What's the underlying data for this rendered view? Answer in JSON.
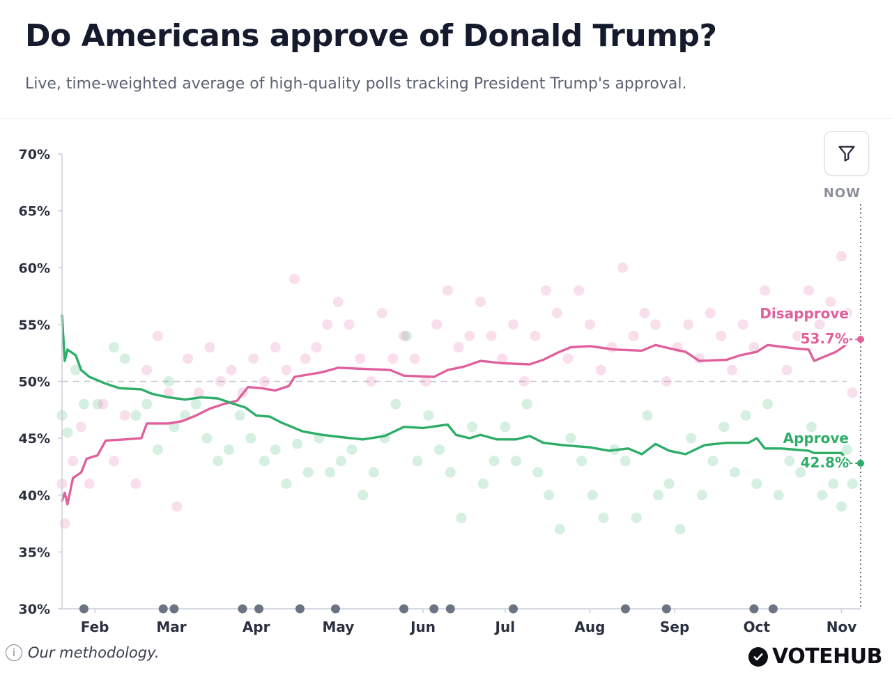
{
  "header": {
    "title": "Do Americans approve of Donald Trump?",
    "subtitle": "Live, time-weighted average of high-quality polls tracking President Trump's approval."
  },
  "controls": {
    "filter_icon": "filter-icon"
  },
  "footer": {
    "methodology_label": "Our methodology.",
    "info_icon": "info-icon",
    "logo_text": "VOTEHUB",
    "logo_icon": "check-circle-icon"
  },
  "colors": {
    "approve": "#2ead68",
    "disapprove": "#e0609c",
    "axis": "#c9ced8",
    "text": "#1b1f2e",
    "markers": "#6b7384"
  },
  "chart_data": {
    "type": "line",
    "ylim": [
      30,
      70
    ],
    "yticks": [
      30,
      35,
      40,
      45,
      50,
      55,
      60,
      65,
      70
    ],
    "ytick_labels": [
      "30%",
      "35%",
      "40%",
      "45%",
      "50%",
      "55%",
      "60%",
      "65%",
      "70%"
    ],
    "xlim": [
      "2025-01-20",
      "2025-11-08"
    ],
    "xticks": [
      {
        "label": "Feb",
        "date": "2025-02-01"
      },
      {
        "label": "Mar",
        "date": "2025-03-01"
      },
      {
        "label": "Apr",
        "date": "2025-04-01"
      },
      {
        "label": "May",
        "date": "2025-05-01"
      },
      {
        "label": "Jun",
        "date": "2025-06-01"
      },
      {
        "label": "Jul",
        "date": "2025-07-01"
      },
      {
        "label": "Aug",
        "date": "2025-08-01"
      },
      {
        "label": "Sep",
        "date": "2025-09-01"
      },
      {
        "label": "Oct",
        "date": "2025-10-01"
      },
      {
        "label": "Nov",
        "date": "2025-11-01"
      }
    ],
    "reference_line": 50,
    "now_label": "NOW",
    "now_date": "2025-11-08",
    "series": [
      {
        "name": "Disapprove",
        "key": "disapprove",
        "current_label": "53.7%",
        "current_value": 53.7,
        "points": [
          [
            "2025-01-20",
            39.5
          ],
          [
            "2025-01-21",
            40.2
          ],
          [
            "2025-01-22",
            39.2
          ],
          [
            "2025-01-24",
            41.5
          ],
          [
            "2025-01-27",
            42.0
          ],
          [
            "2025-01-29",
            43.2
          ],
          [
            "2025-02-02",
            43.5
          ],
          [
            "2025-02-05",
            44.8
          ],
          [
            "2025-02-12",
            44.9
          ],
          [
            "2025-02-18",
            45.0
          ],
          [
            "2025-02-20",
            46.3
          ],
          [
            "2025-02-28",
            46.3
          ],
          [
            "2025-03-05",
            46.5
          ],
          [
            "2025-03-10",
            47.0
          ],
          [
            "2025-03-15",
            47.6
          ],
          [
            "2025-03-20",
            48.0
          ],
          [
            "2025-03-25",
            48.3
          ],
          [
            "2025-03-29",
            49.5
          ],
          [
            "2025-04-03",
            49.4
          ],
          [
            "2025-04-08",
            49.2
          ],
          [
            "2025-04-13",
            49.6
          ],
          [
            "2025-04-15",
            50.4
          ],
          [
            "2025-04-25",
            50.8
          ],
          [
            "2025-05-01",
            51.2
          ],
          [
            "2025-05-10",
            51.1
          ],
          [
            "2025-05-20",
            51.0
          ],
          [
            "2025-05-25",
            50.5
          ],
          [
            "2025-06-05",
            50.4
          ],
          [
            "2025-06-10",
            51.0
          ],
          [
            "2025-06-16",
            51.3
          ],
          [
            "2025-06-22",
            51.8
          ],
          [
            "2025-06-30",
            51.6
          ],
          [
            "2025-07-10",
            51.5
          ],
          [
            "2025-07-15",
            51.9
          ],
          [
            "2025-07-20",
            52.5
          ],
          [
            "2025-07-25",
            53.0
          ],
          [
            "2025-08-01",
            53.1
          ],
          [
            "2025-08-10",
            52.8
          ],
          [
            "2025-08-20",
            52.7
          ],
          [
            "2025-08-25",
            53.2
          ],
          [
            "2025-09-01",
            52.8
          ],
          [
            "2025-09-05",
            52.6
          ],
          [
            "2025-09-10",
            51.8
          ],
          [
            "2025-09-20",
            51.9
          ],
          [
            "2025-09-25",
            52.3
          ],
          [
            "2025-10-01",
            52.6
          ],
          [
            "2025-10-05",
            53.2
          ],
          [
            "2025-10-15",
            52.9
          ],
          [
            "2025-10-20",
            52.8
          ],
          [
            "2025-10-22",
            51.8
          ],
          [
            "2025-10-26",
            52.2
          ],
          [
            "2025-10-30",
            52.6
          ],
          [
            "2025-11-02",
            53.1
          ],
          [
            "2025-11-04",
            53.7
          ]
        ]
      },
      {
        "name": "Approve",
        "key": "approve",
        "current_label": "42.8%",
        "current_value": 42.8,
        "points": [
          [
            "2025-01-20",
            55.8
          ],
          [
            "2025-01-21",
            51.8
          ],
          [
            "2025-01-22",
            52.8
          ],
          [
            "2025-01-25",
            52.3
          ],
          [
            "2025-01-27",
            51.0
          ],
          [
            "2025-01-30",
            50.4
          ],
          [
            "2025-02-05",
            49.8
          ],
          [
            "2025-02-10",
            49.4
          ],
          [
            "2025-02-18",
            49.3
          ],
          [
            "2025-02-22",
            48.9
          ],
          [
            "2025-02-28",
            48.6
          ],
          [
            "2025-03-06",
            48.4
          ],
          [
            "2025-03-12",
            48.6
          ],
          [
            "2025-03-18",
            48.5
          ],
          [
            "2025-03-24",
            48.0
          ],
          [
            "2025-03-28",
            47.7
          ],
          [
            "2025-04-01",
            47.0
          ],
          [
            "2025-04-06",
            46.9
          ],
          [
            "2025-04-10",
            46.4
          ],
          [
            "2025-04-18",
            45.6
          ],
          [
            "2025-04-25",
            45.3
          ],
          [
            "2025-05-02",
            45.1
          ],
          [
            "2025-05-10",
            44.9
          ],
          [
            "2025-05-18",
            45.2
          ],
          [
            "2025-05-25",
            46.0
          ],
          [
            "2025-06-01",
            45.9
          ],
          [
            "2025-06-10",
            46.2
          ],
          [
            "2025-06-13",
            45.3
          ],
          [
            "2025-06-18",
            45.0
          ],
          [
            "2025-06-22",
            45.3
          ],
          [
            "2025-06-28",
            44.9
          ],
          [
            "2025-07-05",
            44.9
          ],
          [
            "2025-07-10",
            45.2
          ],
          [
            "2025-07-15",
            44.6
          ],
          [
            "2025-07-22",
            44.4
          ],
          [
            "2025-08-01",
            44.2
          ],
          [
            "2025-08-08",
            43.9
          ],
          [
            "2025-08-15",
            44.1
          ],
          [
            "2025-08-20",
            43.6
          ],
          [
            "2025-08-25",
            44.5
          ],
          [
            "2025-08-30",
            43.9
          ],
          [
            "2025-09-05",
            43.6
          ],
          [
            "2025-09-12",
            44.4
          ],
          [
            "2025-09-20",
            44.6
          ],
          [
            "2025-09-28",
            44.6
          ],
          [
            "2025-10-01",
            45.0
          ],
          [
            "2025-10-04",
            44.1
          ],
          [
            "2025-10-10",
            44.1
          ],
          [
            "2025-10-15",
            44.0
          ],
          [
            "2025-10-20",
            43.9
          ],
          [
            "2025-10-22",
            43.7
          ],
          [
            "2025-11-01",
            43.7
          ],
          [
            "2025-11-04",
            42.8
          ]
        ]
      }
    ],
    "poll_dots": {
      "approve": [
        [
          "2025-01-20",
          47.0
        ],
        [
          "2025-01-22",
          45.5
        ],
        [
          "2025-01-25",
          51.0
        ],
        [
          "2025-01-28",
          48.0
        ],
        [
          "2025-02-02",
          48.0
        ],
        [
          "2025-02-08",
          53.0
        ],
        [
          "2025-02-12",
          52.0
        ],
        [
          "2025-02-16",
          47.0
        ],
        [
          "2025-02-20",
          48.0
        ],
        [
          "2025-02-24",
          44.0
        ],
        [
          "2025-02-28",
          50.0
        ],
        [
          "2025-03-02",
          46.0
        ],
        [
          "2025-03-06",
          47.0
        ],
        [
          "2025-03-10",
          48.0
        ],
        [
          "2025-03-14",
          45.0
        ],
        [
          "2025-03-18",
          43.0
        ],
        [
          "2025-03-22",
          44.0
        ],
        [
          "2025-03-26",
          47.0
        ],
        [
          "2025-03-30",
          45.0
        ],
        [
          "2025-04-04",
          43.0
        ],
        [
          "2025-04-08",
          44.0
        ],
        [
          "2025-04-12",
          41.0
        ],
        [
          "2025-04-16",
          44.5
        ],
        [
          "2025-04-20",
          42.0
        ],
        [
          "2025-04-24",
          45.0
        ],
        [
          "2025-04-28",
          42.0
        ],
        [
          "2025-05-02",
          43.0
        ],
        [
          "2025-05-06",
          44.0
        ],
        [
          "2025-05-10",
          40.0
        ],
        [
          "2025-05-14",
          42.0
        ],
        [
          "2025-05-18",
          45.0
        ],
        [
          "2025-05-22",
          48.0
        ],
        [
          "2025-05-26",
          54.0
        ],
        [
          "2025-05-30",
          43.0
        ],
        [
          "2025-06-03",
          47.0
        ],
        [
          "2025-06-07",
          44.0
        ],
        [
          "2025-06-11",
          42.0
        ],
        [
          "2025-06-15",
          38.0
        ],
        [
          "2025-06-19",
          46.0
        ],
        [
          "2025-06-23",
          41.0
        ],
        [
          "2025-06-27",
          43.0
        ],
        [
          "2025-07-01",
          46.0
        ],
        [
          "2025-07-05",
          43.0
        ],
        [
          "2025-07-09",
          48.0
        ],
        [
          "2025-07-13",
          42.0
        ],
        [
          "2025-07-17",
          40.0
        ],
        [
          "2025-07-21",
          37.0
        ],
        [
          "2025-07-25",
          45.0
        ],
        [
          "2025-07-29",
          43.0
        ],
        [
          "2025-08-02",
          40.0
        ],
        [
          "2025-08-06",
          38.0
        ],
        [
          "2025-08-10",
          44.0
        ],
        [
          "2025-08-14",
          43.0
        ],
        [
          "2025-08-18",
          38.0
        ],
        [
          "2025-08-22",
          47.0
        ],
        [
          "2025-08-26",
          40.0
        ],
        [
          "2025-08-30",
          41.0
        ],
        [
          "2025-09-03",
          37.0
        ],
        [
          "2025-09-07",
          45.0
        ],
        [
          "2025-09-11",
          40.0
        ],
        [
          "2025-09-15",
          43.0
        ],
        [
          "2025-09-19",
          46.0
        ],
        [
          "2025-09-23",
          42.0
        ],
        [
          "2025-09-27",
          47.0
        ],
        [
          "2025-10-01",
          41.0
        ],
        [
          "2025-10-05",
          48.0
        ],
        [
          "2025-10-09",
          40.0
        ],
        [
          "2025-10-13",
          43.0
        ],
        [
          "2025-10-17",
          42.0
        ],
        [
          "2025-10-21",
          46.0
        ],
        [
          "2025-10-25",
          40.0
        ],
        [
          "2025-10-29",
          41.0
        ],
        [
          "2025-11-01",
          39.0
        ],
        [
          "2025-11-03",
          44.0
        ],
        [
          "2025-11-05",
          41.0
        ]
      ],
      "disapprove": [
        [
          "2025-01-20",
          41.0
        ],
        [
          "2025-01-21",
          37.5
        ],
        [
          "2025-01-24",
          43.0
        ],
        [
          "2025-01-27",
          46.0
        ],
        [
          "2025-01-30",
          41.0
        ],
        [
          "2025-02-04",
          48.0
        ],
        [
          "2025-02-08",
          43.0
        ],
        [
          "2025-02-12",
          47.0
        ],
        [
          "2025-02-16",
          41.0
        ],
        [
          "2025-02-20",
          51.0
        ],
        [
          "2025-02-24",
          54.0
        ],
        [
          "2025-02-28",
          49.0
        ],
        [
          "2025-03-03",
          39.0
        ],
        [
          "2025-03-07",
          52.0
        ],
        [
          "2025-03-11",
          49.0
        ],
        [
          "2025-03-15",
          53.0
        ],
        [
          "2025-03-19",
          50.0
        ],
        [
          "2025-03-23",
          51.0
        ],
        [
          "2025-03-27",
          49.0
        ],
        [
          "2025-03-31",
          52.0
        ],
        [
          "2025-04-04",
          50.0
        ],
        [
          "2025-04-08",
          53.0
        ],
        [
          "2025-04-12",
          51.0
        ],
        [
          "2025-04-15",
          59.0
        ],
        [
          "2025-04-19",
          52.0
        ],
        [
          "2025-04-23",
          53.0
        ],
        [
          "2025-04-27",
          55.0
        ],
        [
          "2025-05-01",
          57.0
        ],
        [
          "2025-05-05",
          55.0
        ],
        [
          "2025-05-09",
          52.0
        ],
        [
          "2025-05-13",
          50.0
        ],
        [
          "2025-05-17",
          56.0
        ],
        [
          "2025-05-21",
          52.0
        ],
        [
          "2025-05-25",
          54.0
        ],
        [
          "2025-05-29",
          52.0
        ],
        [
          "2025-06-02",
          50.0
        ],
        [
          "2025-06-06",
          55.0
        ],
        [
          "2025-06-10",
          58.0
        ],
        [
          "2025-06-14",
          53.0
        ],
        [
          "2025-06-18",
          54.0
        ],
        [
          "2025-06-22",
          57.0
        ],
        [
          "2025-06-26",
          54.0
        ],
        [
          "2025-06-30",
          52.0
        ],
        [
          "2025-07-04",
          55.0
        ],
        [
          "2025-07-08",
          50.0
        ],
        [
          "2025-07-12",
          54.0
        ],
        [
          "2025-07-16",
          58.0
        ],
        [
          "2025-07-20",
          56.0
        ],
        [
          "2025-07-24",
          52.0
        ],
        [
          "2025-07-28",
          58.0
        ],
        [
          "2025-08-01",
          55.0
        ],
        [
          "2025-08-05",
          51.0
        ],
        [
          "2025-08-09",
          53.0
        ],
        [
          "2025-08-13",
          60.0
        ],
        [
          "2025-08-17",
          54.0
        ],
        [
          "2025-08-21",
          56.0
        ],
        [
          "2025-08-25",
          55.0
        ],
        [
          "2025-08-29",
          50.0
        ],
        [
          "2025-09-02",
          53.0
        ],
        [
          "2025-09-06",
          55.0
        ],
        [
          "2025-09-10",
          52.0
        ],
        [
          "2025-09-14",
          56.0
        ],
        [
          "2025-09-18",
          54.0
        ],
        [
          "2025-09-22",
          51.0
        ],
        [
          "2025-09-26",
          55.0
        ],
        [
          "2025-09-30",
          53.0
        ],
        [
          "2025-10-04",
          58.0
        ],
        [
          "2025-10-08",
          56.0
        ],
        [
          "2025-10-12",
          51.0
        ],
        [
          "2025-10-16",
          54.0
        ],
        [
          "2025-10-20",
          58.0
        ],
        [
          "2025-10-24",
          55.0
        ],
        [
          "2025-10-28",
          57.0
        ],
        [
          "2025-11-01",
          61.0
        ],
        [
          "2025-11-03",
          56.0
        ],
        [
          "2025-11-05",
          49.0
        ]
      ]
    },
    "event_markers": [
      "2025-01-28",
      "2025-02-26",
      "2025-03-02",
      "2025-03-27",
      "2025-04-02",
      "2025-04-17",
      "2025-04-30",
      "2025-05-25",
      "2025-06-05",
      "2025-06-11",
      "2025-07-04",
      "2025-08-14",
      "2025-08-29",
      "2025-09-30",
      "2025-10-07"
    ]
  }
}
